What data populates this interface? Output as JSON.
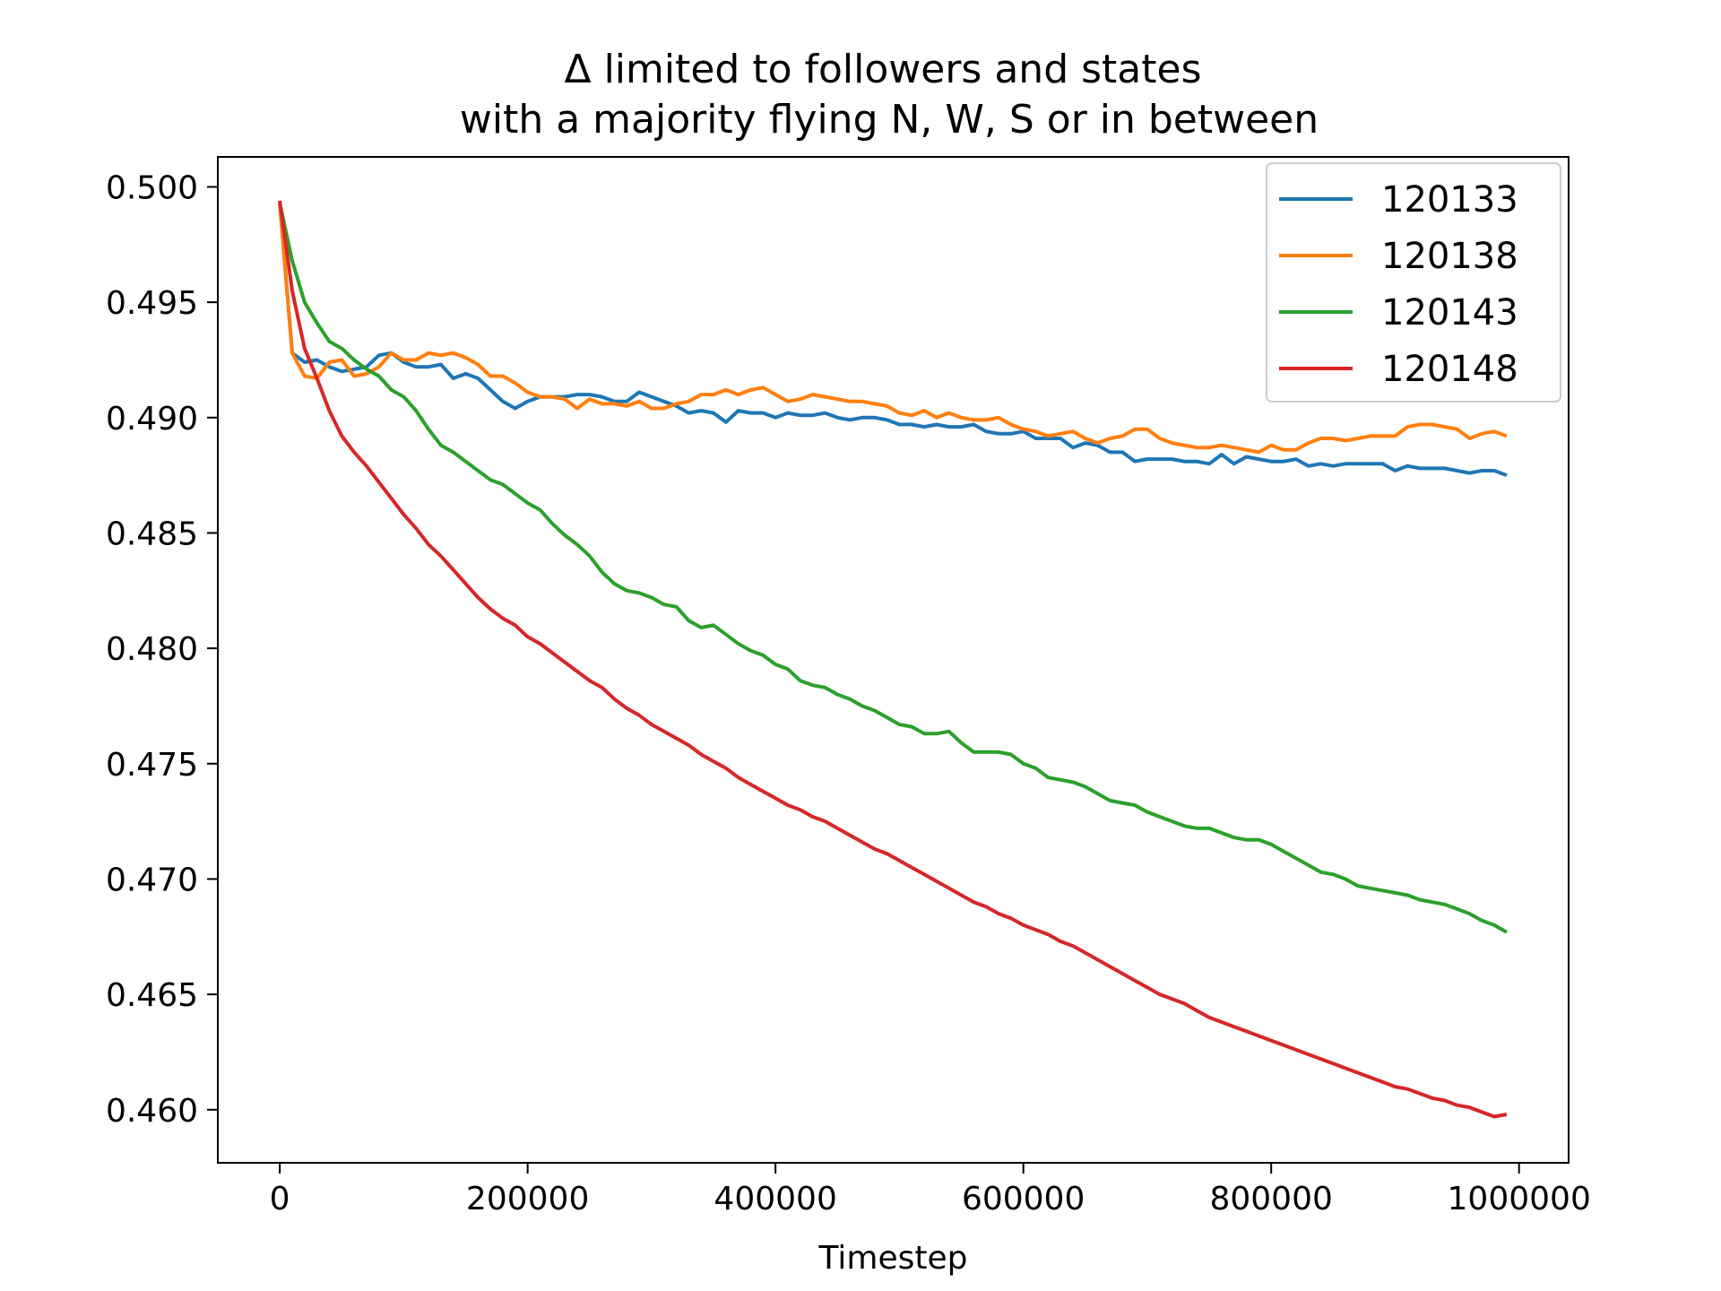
{
  "chart_data": {
    "type": "line",
    "title": "Δ limited to followers and states\nwith a majority flying N, W, S or in between",
    "xlabel": "Timestep",
    "ylabel": "",
    "xlim": [
      -50000,
      1040000
    ],
    "ylim": [
      0.4577,
      0.5013
    ],
    "xticks": [
      0,
      200000,
      400000,
      600000,
      800000,
      1000000
    ],
    "xtick_labels": [
      "0",
      "200000",
      "400000",
      "600000",
      "800000",
      "1000000"
    ],
    "yticks": [
      0.46,
      0.465,
      0.47,
      0.475,
      0.48,
      0.485,
      0.49,
      0.495,
      0.5
    ],
    "ytick_labels": [
      "0.460",
      "0.465",
      "0.470",
      "0.475",
      "0.480",
      "0.485",
      "0.490",
      "0.495",
      "0.500"
    ],
    "grid": false,
    "legend_position": "top-right",
    "x": [
      0,
      10000,
      20000,
      30000,
      40000,
      50000,
      60000,
      70000,
      80000,
      90000,
      100000,
      110000,
      120000,
      130000,
      140000,
      150000,
      160000,
      170000,
      180000,
      190000,
      200000,
      210000,
      220000,
      230000,
      240000,
      250000,
      260000,
      270000,
      280000,
      290000,
      300000,
      310000,
      320000,
      330000,
      340000,
      350000,
      360000,
      370000,
      380000,
      390000,
      400000,
      410000,
      420000,
      430000,
      440000,
      450000,
      460000,
      470000,
      480000,
      490000,
      500000,
      510000,
      520000,
      530000,
      540000,
      550000,
      560000,
      570000,
      580000,
      590000,
      600000,
      610000,
      620000,
      630000,
      640000,
      650000,
      660000,
      670000,
      680000,
      690000,
      700000,
      710000,
      720000,
      730000,
      740000,
      750000,
      760000,
      770000,
      780000,
      790000,
      800000,
      810000,
      820000,
      830000,
      840000,
      850000,
      860000,
      870000,
      880000,
      890000,
      900000,
      910000,
      920000,
      930000,
      940000,
      950000,
      960000,
      970000,
      980000,
      990000
    ],
    "series": [
      {
        "name": "120133",
        "color": "#1f77b4",
        "values": [
          0.4993,
          0.4928,
          0.4924,
          0.4925,
          0.4922,
          0.492,
          0.4921,
          0.4922,
          0.4927,
          0.4928,
          0.4924,
          0.4922,
          0.4922,
          0.4923,
          0.4917,
          0.4919,
          0.4917,
          0.4912,
          0.4907,
          0.4904,
          0.4907,
          0.4909,
          0.4909,
          0.4909,
          0.491,
          0.491,
          0.4909,
          0.4907,
          0.4907,
          0.4911,
          0.4909,
          0.4907,
          0.4905,
          0.4902,
          0.4903,
          0.4902,
          0.4898,
          0.4903,
          0.4902,
          0.4902,
          0.49,
          0.4902,
          0.4901,
          0.4901,
          0.4902,
          0.49,
          0.4899,
          0.49,
          0.49,
          0.4899,
          0.4897,
          0.4897,
          0.4896,
          0.4897,
          0.4896,
          0.4896,
          0.4897,
          0.4894,
          0.4893,
          0.4893,
          0.4894,
          0.4891,
          0.4891,
          0.4891,
          0.4887,
          0.4889,
          0.4888,
          0.4885,
          0.4885,
          0.4881,
          0.4882,
          0.4882,
          0.4882,
          0.4881,
          0.4881,
          0.488,
          0.4884,
          0.488,
          0.4883,
          0.4882,
          0.4881,
          0.4881,
          0.4882,
          0.4879,
          0.488,
          0.4879,
          0.488,
          0.488,
          0.488,
          0.488,
          0.4877,
          0.4879,
          0.4878,
          0.4878,
          0.4878,
          0.4877,
          0.4876,
          0.4877,
          0.4877,
          0.4875
        ]
      },
      {
        "name": "120138",
        "color": "#ff7f0e",
        "values": [
          0.4993,
          0.4928,
          0.4918,
          0.4917,
          0.4924,
          0.4925,
          0.4918,
          0.4919,
          0.4922,
          0.4928,
          0.4925,
          0.4925,
          0.4928,
          0.4927,
          0.4928,
          0.4926,
          0.4923,
          0.4918,
          0.4918,
          0.4915,
          0.4911,
          0.4909,
          0.4909,
          0.4908,
          0.4904,
          0.4908,
          0.4906,
          0.4906,
          0.4905,
          0.4907,
          0.4904,
          0.4904,
          0.4906,
          0.4907,
          0.491,
          0.491,
          0.4912,
          0.491,
          0.4912,
          0.4913,
          0.491,
          0.4907,
          0.4908,
          0.491,
          0.4909,
          0.4908,
          0.4907,
          0.4907,
          0.4906,
          0.4905,
          0.4902,
          0.4901,
          0.4903,
          0.49,
          0.4902,
          0.49,
          0.4899,
          0.4899,
          0.49,
          0.4897,
          0.4895,
          0.4894,
          0.4892,
          0.4893,
          0.4894,
          0.4891,
          0.4889,
          0.4891,
          0.4892,
          0.4895,
          0.4895,
          0.4891,
          0.4889,
          0.4888,
          0.4887,
          0.4887,
          0.4888,
          0.4887,
          0.4886,
          0.4885,
          0.4888,
          0.4886,
          0.4886,
          0.4889,
          0.4891,
          0.4891,
          0.489,
          0.4891,
          0.4892,
          0.4892,
          0.4892,
          0.4896,
          0.4897,
          0.4897,
          0.4896,
          0.4895,
          0.4891,
          0.4893,
          0.4894,
          0.4892
        ]
      },
      {
        "name": "120143",
        "color": "#2ca02c",
        "values": [
          0.4993,
          0.4968,
          0.495,
          0.4941,
          0.4933,
          0.493,
          0.4925,
          0.4921,
          0.4918,
          0.4912,
          0.4909,
          0.4903,
          0.4895,
          0.4888,
          0.4885,
          0.4881,
          0.4877,
          0.4873,
          0.4871,
          0.4867,
          0.4863,
          0.486,
          0.4854,
          0.4849,
          0.4845,
          0.484,
          0.4833,
          0.4828,
          0.4825,
          0.4824,
          0.4822,
          0.4819,
          0.4818,
          0.4812,
          0.4809,
          0.481,
          0.4806,
          0.4802,
          0.4799,
          0.4797,
          0.4793,
          0.4791,
          0.4786,
          0.4784,
          0.4783,
          0.478,
          0.4778,
          0.4775,
          0.4773,
          0.477,
          0.4767,
          0.4766,
          0.4763,
          0.4763,
          0.4764,
          0.4759,
          0.4755,
          0.4755,
          0.4755,
          0.4754,
          0.475,
          0.4748,
          0.4744,
          0.4743,
          0.4742,
          0.474,
          0.4737,
          0.4734,
          0.4733,
          0.4732,
          0.4729,
          0.4727,
          0.4725,
          0.4723,
          0.4722,
          0.4722,
          0.472,
          0.4718,
          0.4717,
          0.4717,
          0.4715,
          0.4712,
          0.4709,
          0.4706,
          0.4703,
          0.4702,
          0.47,
          0.4697,
          0.4696,
          0.4695,
          0.4694,
          0.4693,
          0.4691,
          0.469,
          0.4689,
          0.4687,
          0.4685,
          0.4682,
          0.468,
          0.4677
        ]
      },
      {
        "name": "120148",
        "color": "#d62728",
        "values": [
          0.4994,
          0.4955,
          0.493,
          0.4917,
          0.4903,
          0.4892,
          0.4885,
          0.4879,
          0.4872,
          0.4865,
          0.4858,
          0.4852,
          0.4845,
          0.484,
          0.4834,
          0.4828,
          0.4822,
          0.4817,
          0.4813,
          0.481,
          0.4805,
          0.4802,
          0.4798,
          0.4794,
          0.479,
          0.4786,
          0.4783,
          0.4778,
          0.4774,
          0.4771,
          0.4767,
          0.4764,
          0.4761,
          0.4758,
          0.4754,
          0.4751,
          0.4748,
          0.4744,
          0.4741,
          0.4738,
          0.4735,
          0.4732,
          0.473,
          0.4727,
          0.4725,
          0.4722,
          0.4719,
          0.4716,
          0.4713,
          0.4711,
          0.4708,
          0.4705,
          0.4702,
          0.4699,
          0.4696,
          0.4693,
          0.469,
          0.4688,
          0.4685,
          0.4683,
          0.468,
          0.4678,
          0.4676,
          0.4673,
          0.4671,
          0.4668,
          0.4665,
          0.4662,
          0.4659,
          0.4656,
          0.4653,
          0.465,
          0.4648,
          0.4646,
          0.4643,
          0.464,
          0.4638,
          0.4636,
          0.4634,
          0.4632,
          0.463,
          0.4628,
          0.4626,
          0.4624,
          0.4622,
          0.462,
          0.4618,
          0.4616,
          0.4614,
          0.4612,
          0.461,
          0.4609,
          0.4607,
          0.4605,
          0.4604,
          0.4602,
          0.4601,
          0.4599,
          0.4597,
          0.4598
        ]
      }
    ]
  }
}
